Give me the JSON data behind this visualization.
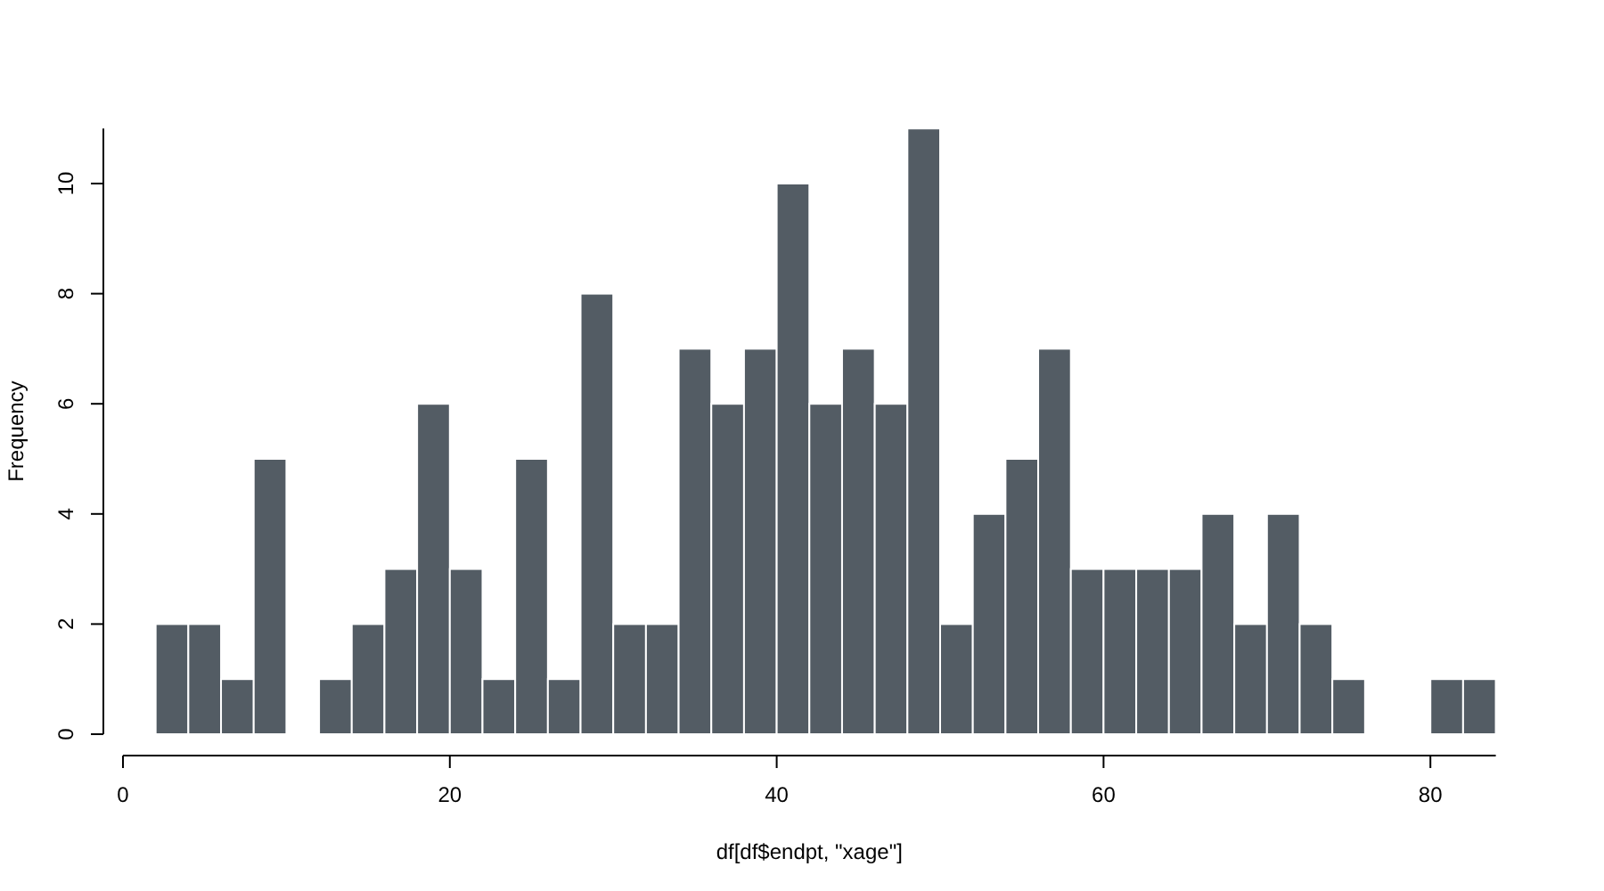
{
  "chart_data": {
    "type": "histogram",
    "xlabel": "df[df$endpt, \"xage\"]",
    "ylabel": "Frequency",
    "bins": [
      2,
      4,
      6,
      8,
      10,
      12,
      14,
      16,
      18,
      20,
      22,
      24,
      26,
      28,
      30,
      32,
      34,
      36,
      38,
      40,
      42,
      44,
      46,
      48,
      50,
      52,
      54,
      56,
      58,
      60,
      62,
      64,
      66,
      68,
      70,
      72,
      74,
      76,
      78,
      80,
      82,
      84
    ],
    "values": [
      2,
      2,
      1,
      5,
      0,
      1,
      2,
      3,
      6,
      3,
      1,
      5,
      1,
      8,
      2,
      2,
      7,
      6,
      7,
      10,
      6,
      7,
      6,
      11,
      2,
      4,
      5,
      7,
      3,
      3,
      3,
      3,
      4,
      2,
      4,
      2,
      1,
      0,
      0,
      1,
      1
    ],
    "color": "#535c64",
    "xlim": [
      0,
      84
    ],
    "ylim": [
      0,
      11
    ],
    "xticks": [
      0,
      20,
      40,
      60,
      80
    ],
    "yticks": [
      0,
      2,
      4,
      6,
      8,
      10
    ],
    "grid": false
  }
}
